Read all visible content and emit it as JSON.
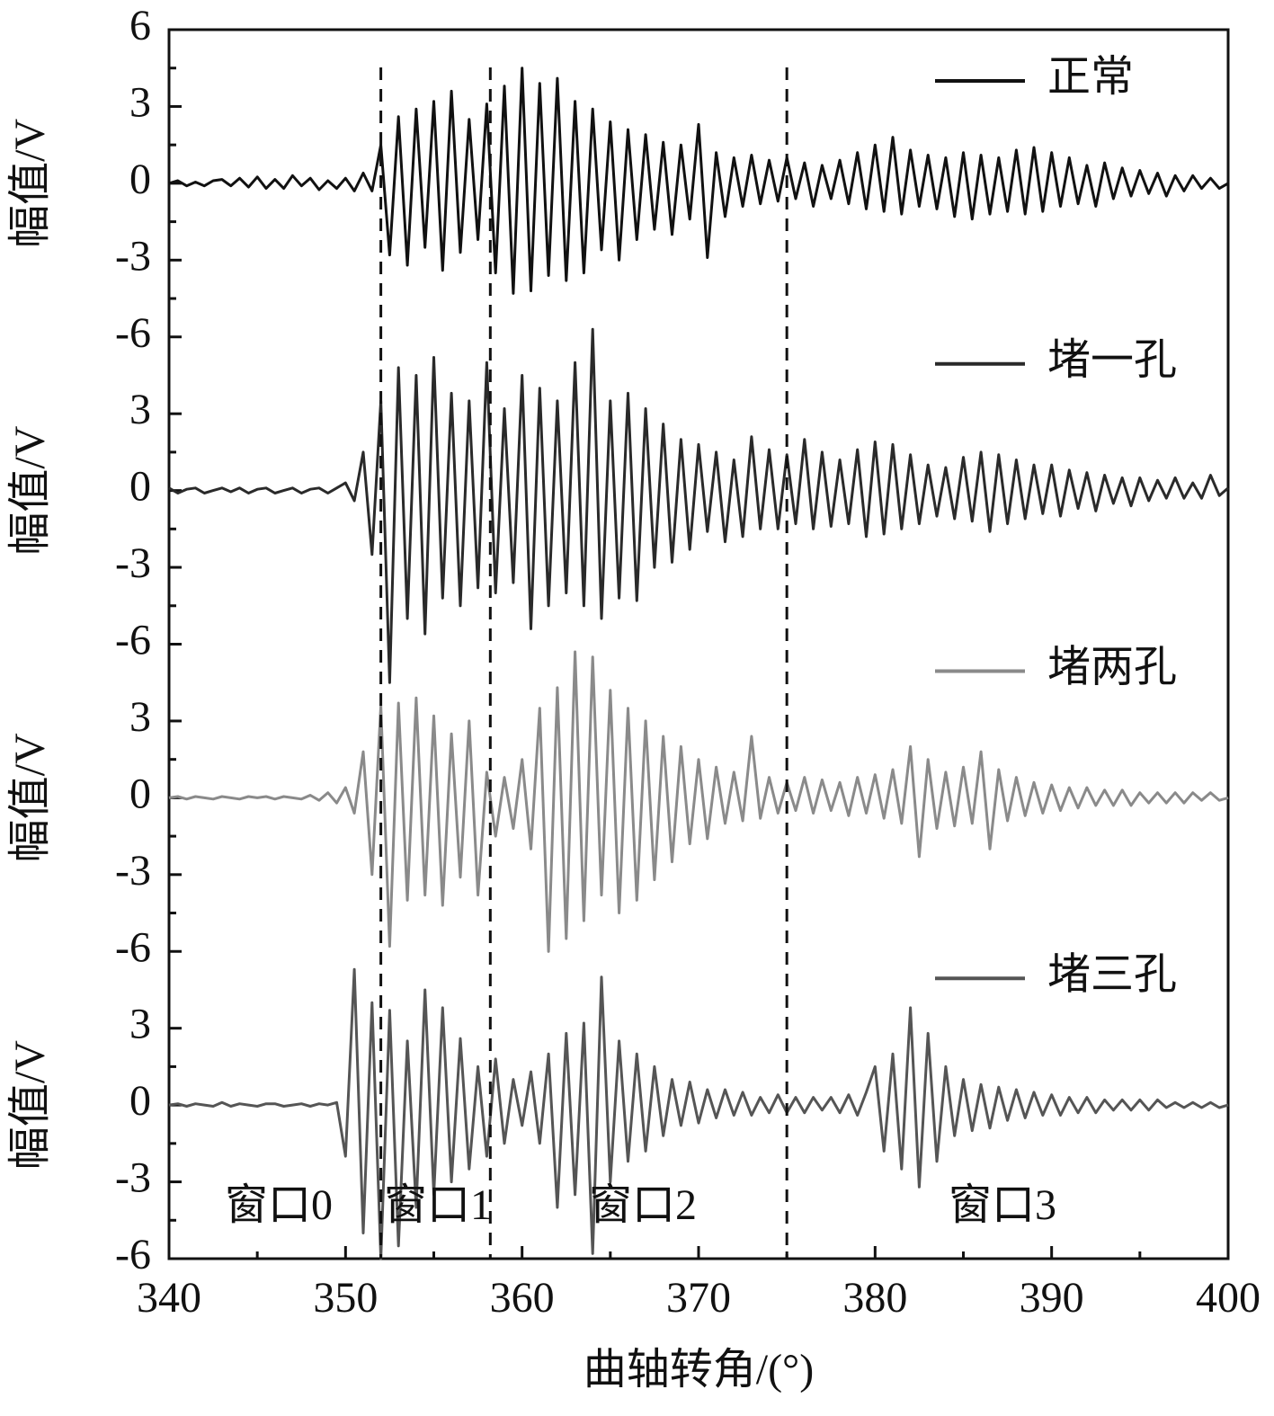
{
  "chart_data": {
    "type": "line",
    "xlabel": "曲轴转角/(°)",
    "xlim": [
      340,
      400
    ],
    "xticks": [
      340,
      350,
      360,
      370,
      380,
      390,
      400
    ],
    "x": [
      340,
      340.5,
      341,
      341.5,
      342,
      342.5,
      343,
      343.5,
      344,
      344.5,
      345,
      345.5,
      346,
      346.5,
      347,
      347.5,
      348,
      348.5,
      349,
      349.5,
      350,
      350.5,
      351,
      351.5,
      352,
      352.5,
      353,
      353.5,
      354,
      354.5,
      355,
      355.5,
      356,
      356.5,
      357,
      357.5,
      358,
      358.5,
      359,
      359.5,
      360,
      360.5,
      361,
      361.5,
      362,
      362.5,
      363,
      363.5,
      364,
      364.5,
      365,
      365.5,
      366,
      366.5,
      367,
      367.5,
      368,
      368.5,
      369,
      369.5,
      370,
      370.5,
      371,
      371.5,
      372,
      372.5,
      373,
      373.5,
      374,
      374.5,
      375,
      375.5,
      376,
      376.5,
      377,
      377.5,
      378,
      378.5,
      379,
      379.5,
      380,
      380.5,
      381,
      381.5,
      382,
      382.5,
      383,
      383.5,
      384,
      384.5,
      385,
      385.5,
      386,
      386.5,
      387,
      387.5,
      388,
      388.5,
      389,
      389.5,
      390,
      390.5,
      391,
      391.5,
      392,
      392.5,
      393,
      393.5,
      394,
      394.5,
      395,
      395.5,
      396,
      396.5,
      397,
      397.5,
      398,
      398.5,
      399,
      399.5,
      400
    ],
    "vlines": [
      352,
      358.2,
      375
    ],
    "annotations": [
      "窗口0",
      "窗口1",
      "窗口2",
      "窗口3"
    ],
    "panels": [
      {
        "ylabel": "幅值/V",
        "ylim": [
          -6,
          6
        ],
        "yticks": [
          6,
          3,
          0,
          -3,
          -6
        ],
        "series": [
          {
            "name": "正常",
            "color": "#111111",
            "values": [
              0,
              0.1,
              -0.1,
              0.05,
              -0.1,
              0.1,
              0.15,
              -0.1,
              0.2,
              -0.15,
              0.25,
              -0.2,
              0.15,
              -0.2,
              0.3,
              -0.1,
              0.2,
              -0.25,
              0.1,
              -0.2,
              0.2,
              -0.3,
              0.4,
              -0.3,
              1.5,
              -2.8,
              2.6,
              -3.2,
              2.9,
              -2.5,
              3.2,
              -3.4,
              3.6,
              -2.7,
              2.5,
              -2.2,
              3.1,
              -3.5,
              3.8,
              -4.3,
              4.5,
              -4.2,
              3.9,
              -3.6,
              4.1,
              -3.8,
              3.2,
              -3.5,
              2.9,
              -2.6,
              2.4,
              -3.0,
              2.1,
              -2.2,
              1.9,
              -1.8,
              1.6,
              -2.0,
              1.5,
              -1.4,
              2.3,
              -2.9,
              1.2,
              -1.3,
              1.0,
              -0.9,
              1.1,
              -0.8,
              0.9,
              -0.7,
              1.0,
              -0.6,
              0.8,
              -0.9,
              0.7,
              -0.6,
              0.9,
              -0.8,
              1.2,
              -1.0,
              1.5,
              -1.1,
              1.8,
              -1.2,
              1.3,
              -0.9,
              1.1,
              -1.0,
              1.0,
              -1.3,
              1.2,
              -1.4,
              1.1,
              -1.2,
              1.0,
              -1.1,
              1.3,
              -1.2,
              1.4,
              -1.1,
              1.2,
              -0.9,
              1.0,
              -0.8,
              0.7,
              -0.9,
              0.8,
              -0.6,
              0.6,
              -0.5,
              0.5,
              -0.4,
              0.4,
              -0.5,
              0.3,
              -0.3,
              0.3,
              -0.2,
              0.2,
              -0.2,
              0
            ]
          }
        ]
      },
      {
        "ylabel": "幅值/V",
        "ylim": [
          -6,
          6
        ],
        "yticks": [
          3,
          0,
          -3,
          -6
        ],
        "series": [
          {
            "name": "堵一孔",
            "color": "#2a2a2a",
            "values": [
              0.1,
              -0.1,
              0.05,
              0.1,
              -0.1,
              0,
              0.1,
              -0.05,
              0.1,
              -0.1,
              0.05,
              0.1,
              -0.1,
              0,
              0.1,
              -0.1,
              0.05,
              0.1,
              -0.1,
              0.1,
              0.3,
              -0.4,
              1.5,
              -2.5,
              3.5,
              -7.5,
              4.8,
              -5.0,
              4.5,
              -5.6,
              5.2,
              -4.2,
              3.8,
              -4.5,
              3.5,
              -3.8,
              5.0,
              -4.0,
              3.2,
              -3.6,
              4.5,
              -5.4,
              4.0,
              -4.5,
              3.5,
              -4.0,
              5.0,
              -4.5,
              6.3,
              -5.0,
              3.5,
              -4.2,
              3.8,
              -4.3,
              3.2,
              -3.0,
              2.6,
              -2.8,
              2.0,
              -2.3,
              1.8,
              -1.6,
              1.5,
              -2.0,
              1.2,
              -1.8,
              2.1,
              -1.5,
              1.6,
              -1.5,
              1.4,
              -1.3,
              2.0,
              -1.5,
              1.5,
              -1.4,
              1.2,
              -1.3,
              1.6,
              -1.8,
              1.9,
              -1.7,
              1.8,
              -1.5,
              1.4,
              -1.3,
              1.0,
              -1.0,
              0.9,
              -1.1,
              1.3,
              -1.2,
              1.5,
              -1.6,
              1.4,
              -1.3,
              1.2,
              -1.1,
              1.0,
              -0.9,
              1.0,
              -1.0,
              0.8,
              -0.7,
              0.7,
              -0.8,
              0.6,
              -0.5,
              0.5,
              -0.6,
              0.5,
              -0.4,
              0.4,
              -0.3,
              0.5,
              -0.3,
              0.3,
              -0.3,
              0.6,
              -0.2,
              0.1
            ]
          }
        ]
      },
      {
        "ylabel": "幅值/V",
        "ylim": [
          -6,
          6
        ],
        "yticks": [
          3,
          0,
          -3,
          -6
        ],
        "series": [
          {
            "name": "堵两孔",
            "color": "#8a8a8a",
            "values": [
              0,
              0.05,
              -0.05,
              0.05,
              0,
              -0.05,
              0.05,
              0,
              -0.05,
              0.05,
              0,
              0.05,
              -0.05,
              0.05,
              0,
              -0.05,
              0.1,
              -0.1,
              0.2,
              -0.2,
              0.4,
              -0.6,
              1.8,
              -3.0,
              3.6,
              -5.8,
              3.7,
              -4.0,
              3.9,
              -3.8,
              3.2,
              -4.2,
              2.5,
              -3.1,
              3.0,
              -3.8,
              1.0,
              -1.5,
              0.8,
              -1.2,
              1.5,
              -2.0,
              3.5,
              -6.0,
              4.3,
              -5.5,
              5.7,
              -4.8,
              5.5,
              -3.8,
              4.2,
              -4.5,
              3.5,
              -4.0,
              3.0,
              -3.2,
              2.4,
              -2.5,
              2.0,
              -1.8,
              1.5,
              -1.6,
              1.2,
              -1.0,
              1.0,
              -0.9,
              2.4,
              -0.8,
              0.8,
              -0.6,
              0.6,
              -0.5,
              0.8,
              -0.6,
              0.7,
              -0.5,
              0.6,
              -0.7,
              0.8,
              -0.6,
              0.9,
              -0.8,
              1.1,
              -1.0,
              2.0,
              -2.3,
              1.5,
              -1.2,
              1.0,
              -1.1,
              1.2,
              -1.0,
              1.8,
              -2.0,
              1.1,
              -0.9,
              0.8,
              -0.7,
              0.6,
              -0.6,
              0.5,
              -0.5,
              0.4,
              -0.4,
              0.4,
              -0.3,
              0.3,
              -0.3,
              0.3,
              -0.3,
              0.2,
              -0.2,
              0.2,
              -0.2,
              0.2,
              -0.2,
              0.2,
              -0.1,
              0.2,
              -0.1,
              0
            ]
          }
        ]
      },
      {
        "ylabel": "幅值/V",
        "ylim": [
          -6,
          6
        ],
        "yticks": [
          3,
          0,
          -3,
          -6
        ],
        "series": [
          {
            "name": "堵三孔",
            "color": "#555555",
            "values": [
              0,
              0.05,
              -0.05,
              0.05,
              0,
              -0.05,
              0.1,
              -0.05,
              0.05,
              0,
              -0.05,
              0.05,
              0.05,
              -0.05,
              0,
              0.05,
              -0.05,
              0.05,
              0,
              0.1,
              -2.0,
              5.3,
              -5.0,
              4.0,
              -6.0,
              3.7,
              -5.5,
              2.5,
              -4.0,
              4.5,
              -3.5,
              3.8,
              -3.0,
              2.6,
              -2.5,
              1.5,
              -2.0,
              1.8,
              -1.5,
              1.0,
              -0.8,
              1.3,
              -1.5,
              2.0,
              -4.0,
              2.8,
              -3.5,
              3.2,
              -5.8,
              5.0,
              -3.0,
              2.5,
              -2.2,
              2.0,
              -1.8,
              1.5,
              -1.2,
              1.0,
              -0.8,
              0.9,
              -0.7,
              0.6,
              -0.5,
              0.6,
              -0.4,
              0.5,
              -0.4,
              0.3,
              -0.3,
              0.4,
              -0.3,
              0.3,
              -0.3,
              0.3,
              -0.2,
              0.3,
              -0.3,
              0.4,
              -0.4,
              0.5,
              1.5,
              -1.8,
              2.0,
              -2.5,
              3.8,
              -3.2,
              2.8,
              -2.2,
              1.5,
              -1.2,
              1.0,
              -1.0,
              0.8,
              -0.9,
              0.7,
              -0.6,
              0.6,
              -0.5,
              0.5,
              -0.4,
              0.4,
              -0.4,
              0.3,
              -0.3,
              0.3,
              -0.3,
              0.2,
              -0.2,
              0.2,
              -0.2,
              0.2,
              -0.2,
              0.2,
              -0.1,
              0.1,
              -0.1,
              0.1,
              -0.1,
              0.1,
              -0.1,
              0
            ]
          }
        ]
      }
    ]
  }
}
